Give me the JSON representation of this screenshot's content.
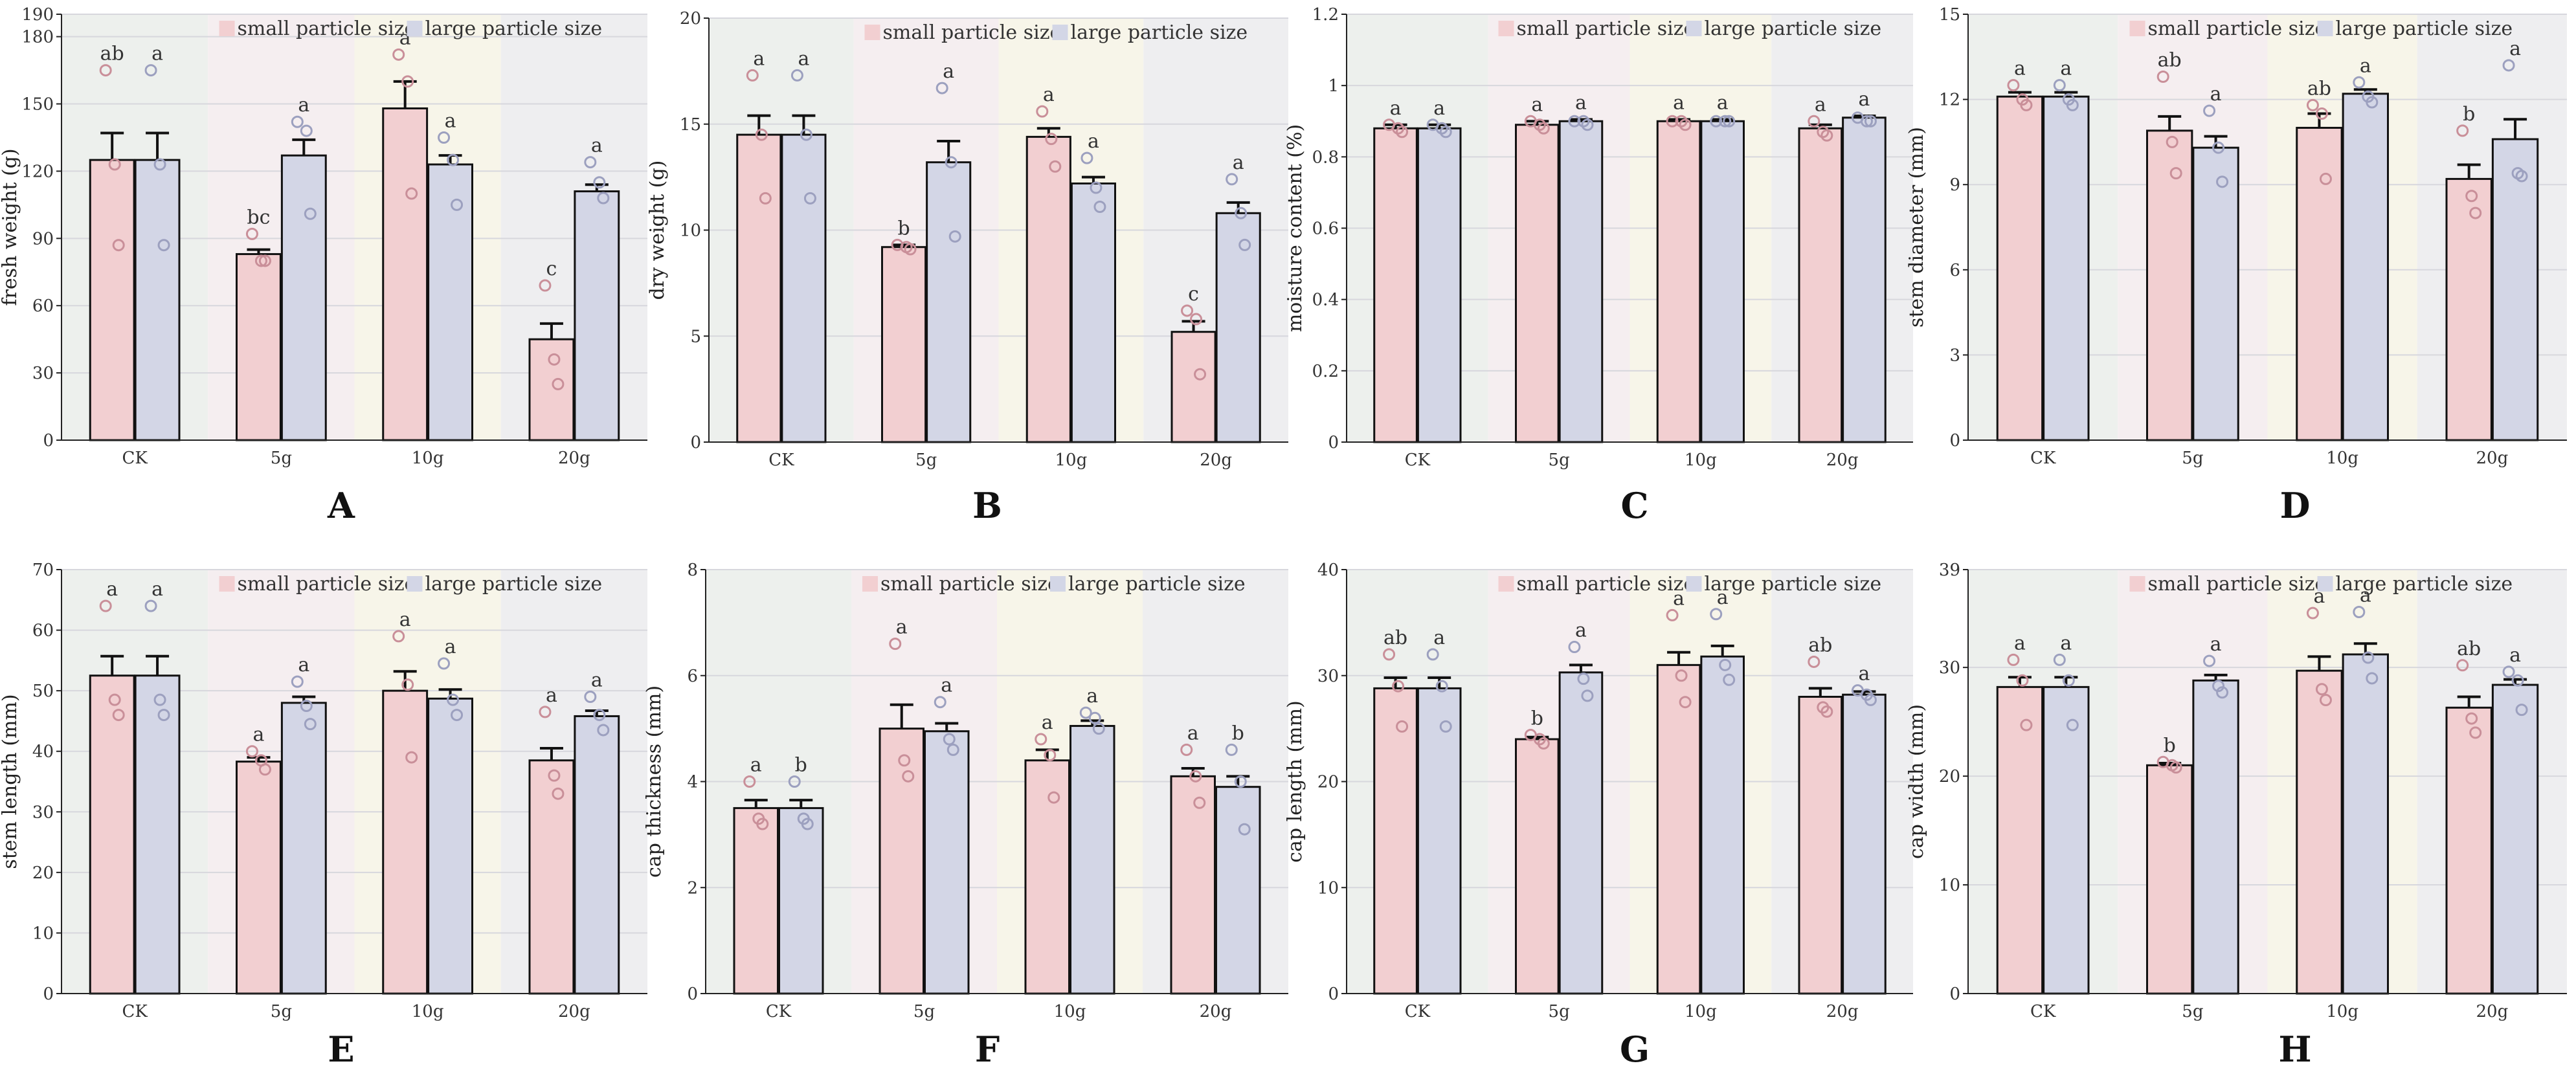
{
  "figure": {
    "x_categories": [
      "CK",
      "5g",
      "10g",
      "20g"
    ],
    "legend": {
      "small": "small particle size",
      "large": "large particle size"
    },
    "colors": {
      "small": "#f2cfd1",
      "large": "#d3d6e6",
      "bar_edge": "#111111",
      "point_small": "#c98f99",
      "point_large": "#9ca0bf",
      "panel_bgs": [
        "#edf0ed",
        "#f5eef0",
        "#f7f5e9",
        "#eeeef0"
      ]
    }
  },
  "chart_data": [
    {
      "panel": "A",
      "type": "bar",
      "ylabel": "fresh weight (g)",
      "ylim": [
        0,
        190
      ],
      "yticks": [
        0,
        30,
        60,
        90,
        120,
        150,
        180,
        190
      ],
      "categories": [
        "CK",
        "5g",
        "10g",
        "20g"
      ],
      "series": [
        {
          "name": "small particle size",
          "values": [
            125,
            83,
            148,
            45
          ],
          "err": [
            12,
            2,
            12,
            7
          ],
          "letters": [
            "ab",
            "bc",
            "a",
            "c"
          ],
          "points": [
            [
              165,
              123,
              87
            ],
            [
              92,
              80,
              80
            ],
            [
              172,
              160,
              110
            ],
            [
              69,
              36,
              25
            ]
          ]
        },
        {
          "name": "large particle size",
          "values": [
            125,
            127,
            123,
            111
          ],
          "err": [
            12,
            7,
            4,
            3
          ],
          "letters": [
            "a",
            "a",
            "a",
            "a"
          ],
          "points": [
            [
              165,
              123,
              87
            ],
            [
              142,
              138,
              101
            ],
            [
              135,
              125,
              105
            ],
            [
              124,
              115,
              108
            ]
          ]
        }
      ]
    },
    {
      "panel": "B",
      "type": "bar",
      "ylabel": "dry weight (g)",
      "ylim": [
        0,
        20
      ],
      "yticks": [
        0,
        5,
        10,
        15,
        20
      ],
      "categories": [
        "CK",
        "5g",
        "10g",
        "20g"
      ],
      "series": [
        {
          "name": "small particle size",
          "values": [
            14.5,
            9.2,
            14.4,
            5.2
          ],
          "err": [
            0.9,
            0.1,
            0.4,
            0.5
          ],
          "letters": [
            "a",
            "b",
            "a",
            "c"
          ],
          "points": [
            [
              17.3,
              14.5,
              11.5
            ],
            [
              9.3,
              9.2,
              9.1
            ],
            [
              15.6,
              14.3,
              13.0
            ],
            [
              6.2,
              5.8,
              3.2
            ]
          ]
        },
        {
          "name": "large particle size",
          "values": [
            14.5,
            13.2,
            12.2,
            10.8
          ],
          "err": [
            0.9,
            1.0,
            0.3,
            0.5
          ],
          "letters": [
            "a",
            "a",
            "a",
            "a"
          ],
          "points": [
            [
              17.3,
              14.5,
              11.5
            ],
            [
              16.7,
              13.2,
              9.7
            ],
            [
              13.4,
              12.0,
              11.1
            ],
            [
              12.4,
              10.8,
              9.3
            ]
          ]
        }
      ]
    },
    {
      "panel": "C",
      "type": "bar",
      "ylabel": "moisture content (%)",
      "ylim": [
        0,
        1.2
      ],
      "yticks": [
        0,
        0.2,
        0.4,
        0.6,
        0.8,
        1,
        1.2
      ],
      "ytick_labels": [
        "0",
        "0.2",
        "0.4",
        "0.6",
        "0.8",
        "1",
        "1.2"
      ],
      "categories": [
        "CK",
        "5g",
        "10g",
        "20g"
      ],
      "series": [
        {
          "name": "small particle size",
          "values": [
            0.88,
            0.89,
            0.9,
            0.88
          ],
          "err": [
            0.01,
            0.01,
            0.005,
            0.01
          ],
          "letters": [
            "a",
            "a",
            "a",
            "a"
          ],
          "points": [
            [
              0.89,
              0.88,
              0.87
            ],
            [
              0.9,
              0.89,
              0.88
            ],
            [
              0.9,
              0.9,
              0.89
            ],
            [
              0.9,
              0.87,
              0.86
            ]
          ]
        },
        {
          "name": "large particle size",
          "values": [
            0.88,
            0.9,
            0.9,
            0.91
          ],
          "err": [
            0.01,
            0.005,
            0.005,
            0.005
          ],
          "letters": [
            "a",
            "a",
            "a",
            "a"
          ],
          "points": [
            [
              0.89,
              0.88,
              0.87
            ],
            [
              0.9,
              0.9,
              0.89
            ],
            [
              0.9,
              0.9,
              0.9
            ],
            [
              0.91,
              0.9,
              0.9
            ]
          ]
        }
      ]
    },
    {
      "panel": "D",
      "type": "bar",
      "ylabel": "stem diameter (mm)",
      "ylim": [
        0,
        15
      ],
      "yticks": [
        0,
        3,
        6,
        9,
        12,
        15
      ],
      "categories": [
        "CK",
        "5g",
        "10g",
        "20g"
      ],
      "series": [
        {
          "name": "small particle size",
          "values": [
            12.1,
            10.9,
            11.0,
            9.2
          ],
          "err": [
            0.15,
            0.5,
            0.5,
            0.5
          ],
          "letters": [
            "a",
            "ab",
            "ab",
            "b"
          ],
          "points": [
            [
              12.5,
              12.0,
              11.8
            ],
            [
              12.8,
              10.5,
              9.4
            ],
            [
              11.8,
              11.5,
              9.2
            ],
            [
              10.9,
              8.6,
              8.0
            ]
          ]
        },
        {
          "name": "large particle size",
          "values": [
            12.1,
            10.3,
            12.2,
            10.6
          ],
          "err": [
            0.15,
            0.4,
            0.15,
            0.7
          ],
          "letters": [
            "a",
            "a",
            "a",
            "a"
          ],
          "points": [
            [
              12.5,
              12.0,
              11.8
            ],
            [
              11.6,
              10.3,
              9.1
            ],
            [
              12.6,
              12.1,
              11.9
            ],
            [
              13.2,
              9.4,
              9.3
            ]
          ]
        }
      ]
    },
    {
      "panel": "E",
      "type": "bar",
      "ylabel": "stem length (mm)",
      "ylim": [
        0,
        70
      ],
      "yticks": [
        0,
        10,
        20,
        30,
        40,
        50,
        60,
        70
      ],
      "categories": [
        "CK",
        "5g",
        "10g",
        "20g"
      ],
      "series": [
        {
          "name": "small particle size",
          "values": [
            52.5,
            38.3,
            50.0,
            38.5
          ],
          "err": [
            3.2,
            0.7,
            3.2,
            2.0
          ],
          "letters": [
            "a",
            "a",
            "a",
            "a"
          ],
          "points": [
            [
              64.0,
              48.5,
              46.0
            ],
            [
              40.0,
              38.5,
              37.0
            ],
            [
              59.0,
              51.0,
              39.0
            ],
            [
              46.5,
              36.0,
              33.0
            ]
          ]
        },
        {
          "name": "large particle size",
          "values": [
            52.5,
            48.0,
            48.7,
            45.8
          ],
          "err": [
            3.2,
            1.0,
            1.5,
            0.9
          ],
          "letters": [
            "a",
            "a",
            "a",
            "a"
          ],
          "points": [
            [
              64.0,
              48.5,
              46.0
            ],
            [
              51.5,
              47.5,
              44.5
            ],
            [
              54.5,
              48.5,
              46.0
            ],
            [
              49.0,
              46.0,
              43.5
            ]
          ]
        }
      ]
    },
    {
      "panel": "F",
      "type": "bar",
      "ylabel": "cap thickness (mm)",
      "ylim": [
        0,
        8
      ],
      "yticks": [
        0,
        2,
        4,
        6,
        8
      ],
      "categories": [
        "CK",
        "5g",
        "10g",
        "20g"
      ],
      "series": [
        {
          "name": "small particle size",
          "values": [
            3.5,
            5.0,
            4.4,
            4.1
          ],
          "err": [
            0.15,
            0.45,
            0.2,
            0.15
          ],
          "letters": [
            "a",
            "a",
            "a",
            "a"
          ],
          "points": [
            [
              4.0,
              3.3,
              3.2
            ],
            [
              6.6,
              4.4,
              4.1
            ],
            [
              4.8,
              4.5,
              3.7
            ],
            [
              4.6,
              4.1,
              3.6
            ]
          ]
        },
        {
          "name": "large particle size",
          "values": [
            3.5,
            4.95,
            5.05,
            3.9
          ],
          "err": [
            0.15,
            0.15,
            0.1,
            0.2
          ],
          "letters": [
            "b",
            "a",
            "a",
            "b"
          ],
          "points": [
            [
              4.0,
              3.3,
              3.2
            ],
            [
              5.5,
              4.8,
              4.6
            ],
            [
              5.3,
              5.2,
              5.0
            ],
            [
              4.6,
              4.0,
              3.1
            ]
          ]
        }
      ]
    },
    {
      "panel": "G",
      "type": "bar",
      "ylabel": "cap length (mm)",
      "ylim": [
        0,
        40
      ],
      "yticks": [
        0,
        10,
        20,
        30,
        40
      ],
      "categories": [
        "CK",
        "5g",
        "10g",
        "20g"
      ],
      "series": [
        {
          "name": "small particle size",
          "values": [
            28.8,
            24.0,
            31.0,
            28.0
          ],
          "err": [
            1.0,
            0.2,
            1.2,
            0.8
          ],
          "letters": [
            "ab",
            "b",
            "a",
            "ab"
          ],
          "points": [
            [
              32.0,
              29.0,
              25.2
            ],
            [
              24.4,
              24.0,
              23.6
            ],
            [
              35.7,
              30.0,
              27.5
            ],
            [
              31.3,
              27.0,
              26.6
            ]
          ]
        },
        {
          "name": "large particle size",
          "values": [
            28.8,
            30.3,
            31.8,
            28.2
          ],
          "err": [
            1.0,
            0.7,
            1.0,
            0.3
          ],
          "letters": [
            "a",
            "a",
            "a",
            "a"
          ],
          "points": [
            [
              32.0,
              29.0,
              25.2
            ],
            [
              32.7,
              29.7,
              28.1
            ],
            [
              35.8,
              31.0,
              29.6
            ],
            [
              28.6,
              28.2,
              27.7
            ]
          ]
        }
      ]
    },
    {
      "panel": "H",
      "type": "bar",
      "ylabel": "cap width (mm)",
      "ylim": [
        0,
        39
      ],
      "yticks": [
        0,
        10,
        20,
        30,
        39
      ],
      "categories": [
        "CK",
        "5g",
        "10g",
        "20g"
      ],
      "series": [
        {
          "name": "small particle size",
          "values": [
            28.2,
            21.0,
            29.7,
            26.3
          ],
          "err": [
            0.9,
            0.2,
            1.3,
            1.0
          ],
          "letters": [
            "a",
            "b",
            "a",
            "ab"
          ],
          "points": [
            [
              30.7,
              28.8,
              24.7
            ],
            [
              21.3,
              21.0,
              20.8
            ],
            [
              35.0,
              28.0,
              27.0
            ],
            [
              30.2,
              25.3,
              24.0
            ]
          ]
        },
        {
          "name": "large particle size",
          "values": [
            28.2,
            28.8,
            31.2,
            28.4
          ],
          "err": [
            0.9,
            0.5,
            1.0,
            0.5
          ],
          "letters": [
            "a",
            "a",
            "a",
            "a"
          ],
          "points": [
            [
              30.7,
              28.8,
              24.7
            ],
            [
              30.6,
              28.3,
              27.7
            ],
            [
              35.1,
              30.9,
              29.0
            ],
            [
              29.6,
              28.8,
              26.1
            ]
          ]
        }
      ]
    }
  ]
}
